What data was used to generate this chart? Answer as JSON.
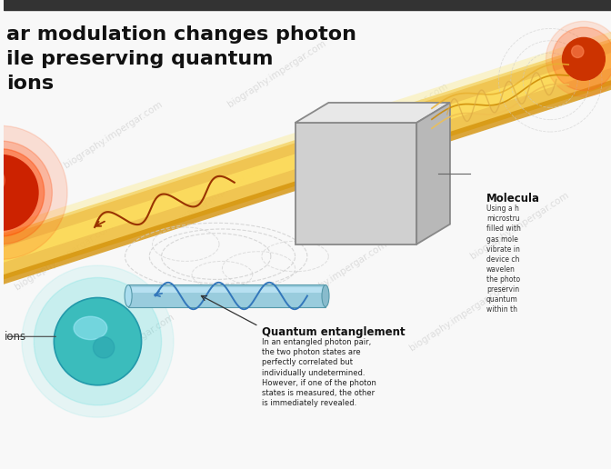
{
  "bg_color": "#f8f8f8",
  "title_lines": [
    "ar modulation changes photon",
    "ile preserving quantum",
    "ions"
  ],
  "title_color": "#111111",
  "title_fontsize": 16,
  "watermark": "biography.impergar.com",
  "watermark_color": "#bbbbbb",
  "annotation_quantum_title": "Quantum entanglement",
  "annotation_quantum_body": "In an entangled photon pair,\nthe two photon states are\nperfectly correlated but\nindividually undetermined.\nHowever, if one of the photon\nstates is measured, the other\nis immediately revealed.",
  "annotation_molecular_title": "Molecula",
  "annotation_molecular_body": "Using a h\nmicrostru\nfilled with\ngas mole\nvibrate in\ndevice ch\nwavelen\nthe photo\npreservin\nquantum\nwithin th",
  "photon_red_color": "#cc2200",
  "photon_teal_color": "#3bbcbc",
  "beam_color_main": "#f0c040",
  "beam_color_dark": "#d4920a",
  "beam_color_light": "#f8e090",
  "box_face_front": "#d0d0d0",
  "box_face_top": "#e8e8e8",
  "box_face_right": "#b8b8b8",
  "box_edge_color": "#888888",
  "wave_red_color": "#993300",
  "wave_blue_color": "#3377bb",
  "cylinder_color": "#88ccdd",
  "helix_color": "#aaccdd",
  "dashed_color": "#cccccc",
  "arrow_color": "#222222",
  "top_bar_color": "#333333",
  "label_ions_color": "#333333"
}
